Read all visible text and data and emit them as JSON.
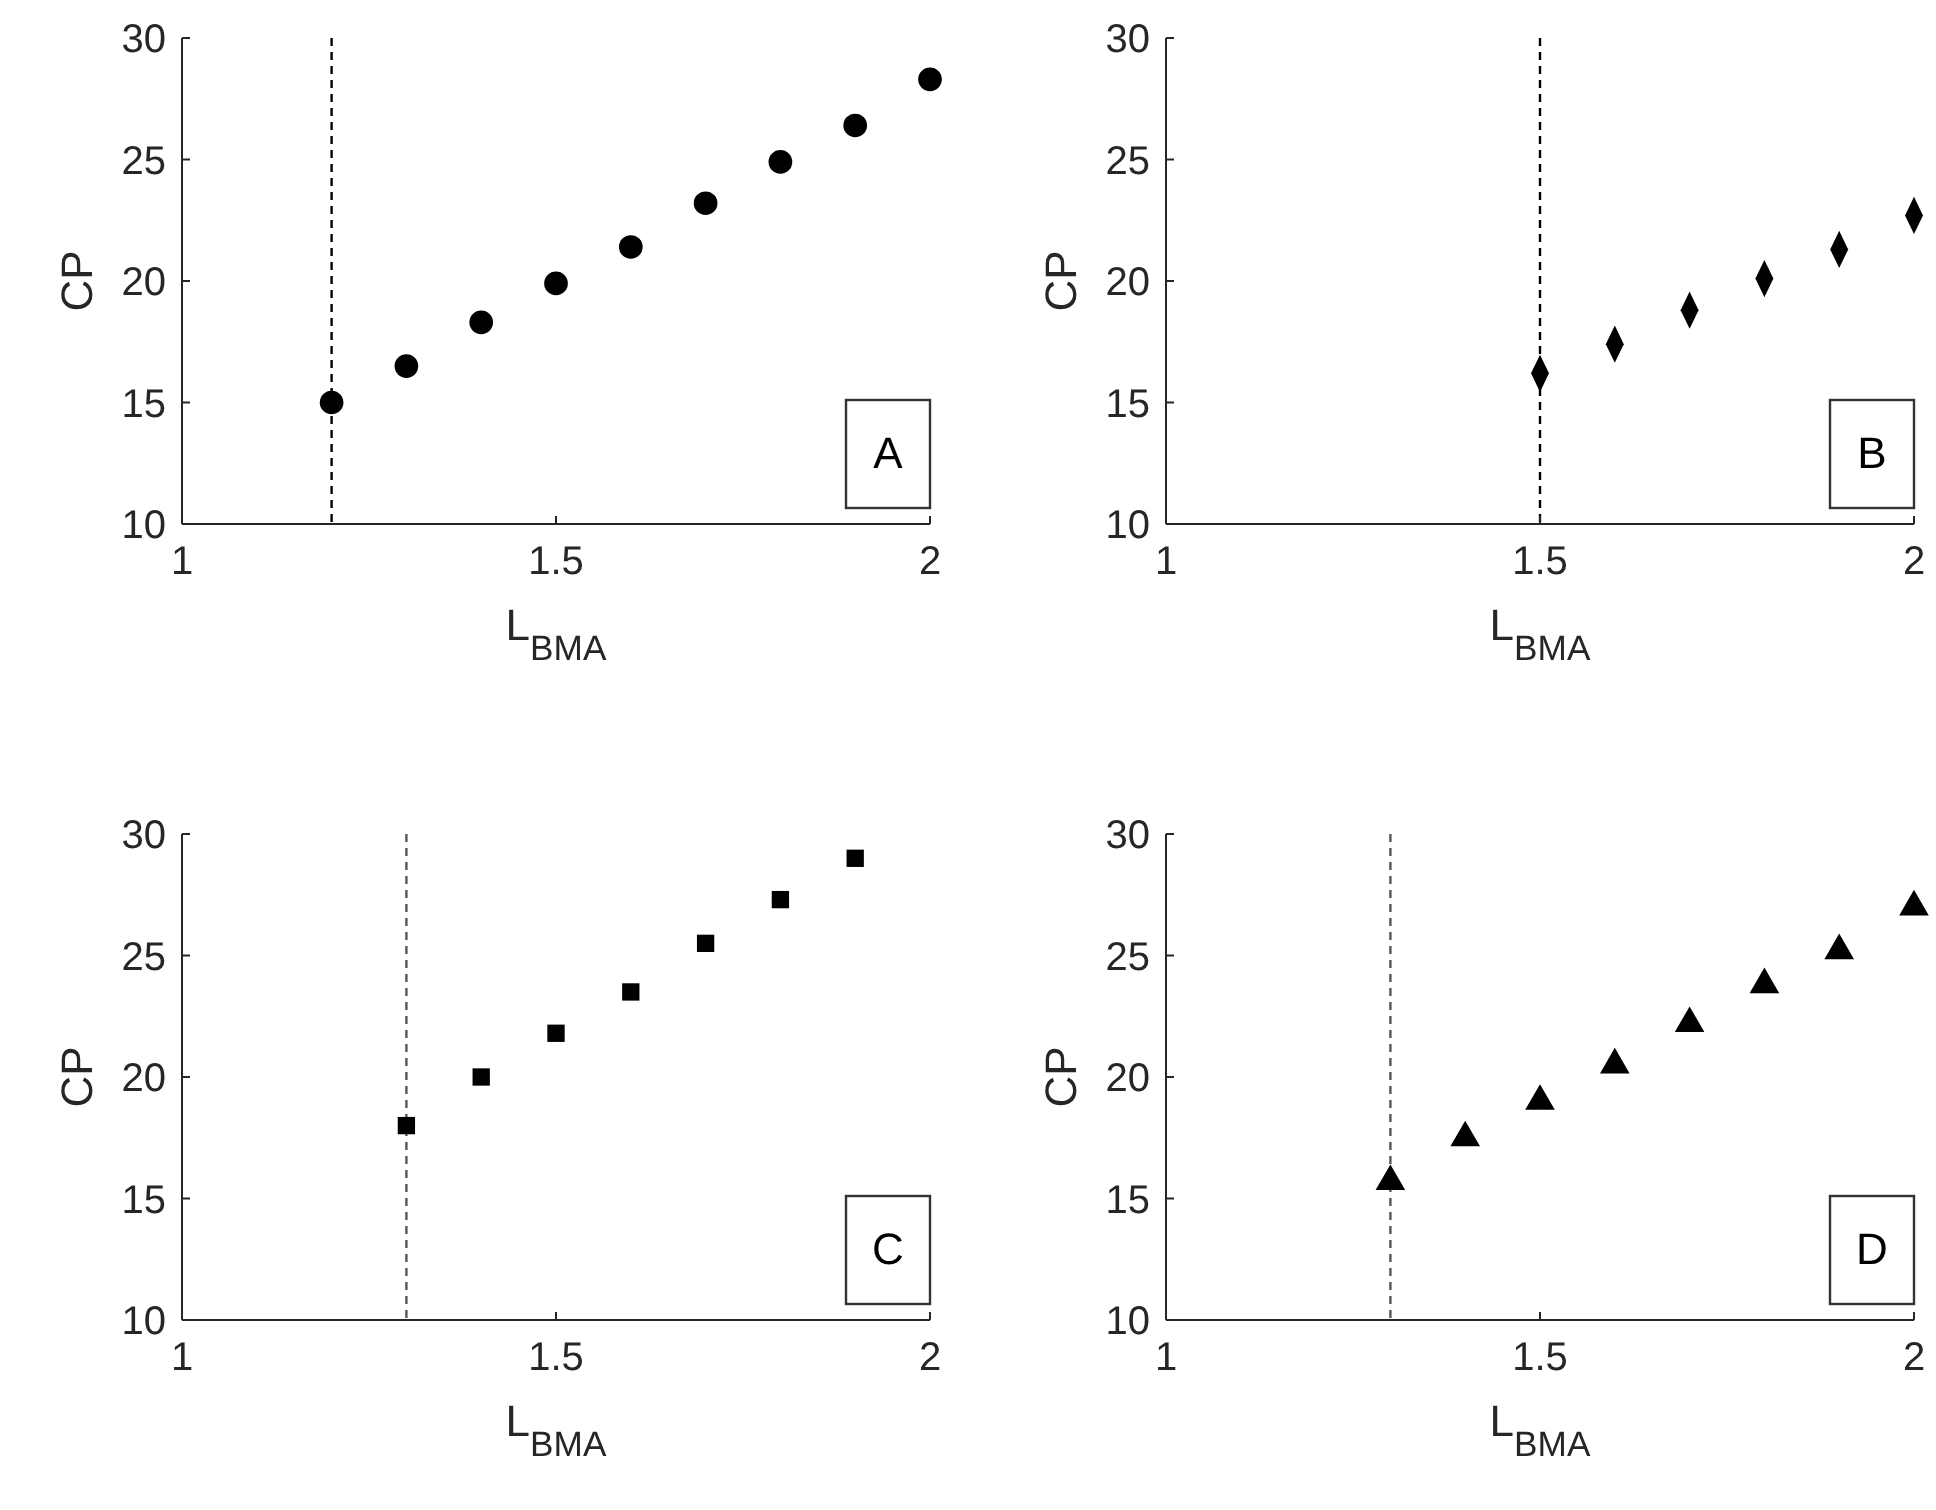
{
  "chart_data": [
    {
      "type": "scatter",
      "xlabel": "L$_{BMA}$",
      "ylabel": "CP",
      "x": [
        1.2,
        1.3,
        1.4,
        1.5,
        1.6,
        1.7,
        1.8,
        1.9,
        2.0
      ],
      "series": [
        {
          "color": "#000000",
          "values": [
            15.0,
            16.5,
            18.3,
            19.9,
            21.4,
            23.2,
            24.9,
            26.4,
            28.3
          ]
        }
      ],
      "marker": "circle",
      "xlim": [
        1,
        2
      ],
      "xticks": [
        1,
        1.5,
        2
      ],
      "ylim": [
        10,
        30
      ],
      "yticks": [
        10,
        15,
        20,
        25,
        30
      ],
      "ref_lines": [
        {
          "axis": "x",
          "value": 1.2,
          "line_style": "dashed",
          "color": "#000000"
        }
      ],
      "annotations": [
        "A"
      ],
      "grid": false
    },
    {
      "type": "scatter",
      "xlabel": "L$_{BMA}$",
      "ylabel": "CP",
      "x": [
        1.5,
        1.6,
        1.7,
        1.8,
        1.9,
        2.0
      ],
      "series": [
        {
          "color": "#000000",
          "values": [
            16.2,
            17.4,
            18.8,
            20.1,
            21.3,
            22.7
          ]
        }
      ],
      "marker": "diamond",
      "xlim": [
        1,
        2
      ],
      "xticks": [
        1,
        1.5,
        2
      ],
      "ylim": [
        10,
        30
      ],
      "yticks": [
        10,
        15,
        20,
        25,
        30
      ],
      "ref_lines": [
        {
          "axis": "x",
          "value": 1.5,
          "line_style": "dashed",
          "color": "#000000"
        }
      ],
      "annotations": [
        "B"
      ],
      "grid": false
    },
    {
      "type": "scatter",
      "xlabel": "L$_{BMA}$",
      "ylabel": "CP",
      "x": [
        1.3,
        1.4,
        1.5,
        1.6,
        1.7,
        1.8,
        1.9
      ],
      "series": [
        {
          "color": "#000000",
          "values": [
            18.0,
            20.0,
            21.8,
            23.5,
            25.5,
            27.3,
            29.0
          ]
        }
      ],
      "marker": "square",
      "xlim": [
        1,
        2
      ],
      "xticks": [
        1,
        1.5,
        2
      ],
      "ylim": [
        10,
        30
      ],
      "yticks": [
        10,
        15,
        20,
        25,
        30
      ],
      "ref_lines": [
        {
          "axis": "x",
          "value": 1.3,
          "line_style": "dashed",
          "color": "#555555"
        }
      ],
      "annotations": [
        "C"
      ],
      "grid": false
    },
    {
      "type": "scatter",
      "xlabel": "L$_{BMA}$",
      "ylabel": "CP",
      "x": [
        1.3,
        1.4,
        1.5,
        1.6,
        1.7,
        1.8,
        1.9,
        2.0
      ],
      "series": [
        {
          "color": "#000000",
          "values": [
            15.7,
            17.5,
            19.0,
            20.5,
            22.2,
            23.8,
            25.2,
            27.0
          ]
        }
      ],
      "marker": "triangle",
      "xlim": [
        1,
        2
      ],
      "xticks": [
        1,
        1.5,
        2
      ],
      "ylim": [
        10,
        30
      ],
      "yticks": [
        10,
        15,
        20,
        25,
        30
      ],
      "ref_lines": [
        {
          "axis": "x",
          "value": 1.3,
          "line_style": "dashed",
          "color": "#555555"
        }
      ],
      "annotations": [
        "D"
      ],
      "grid": false
    }
  ]
}
